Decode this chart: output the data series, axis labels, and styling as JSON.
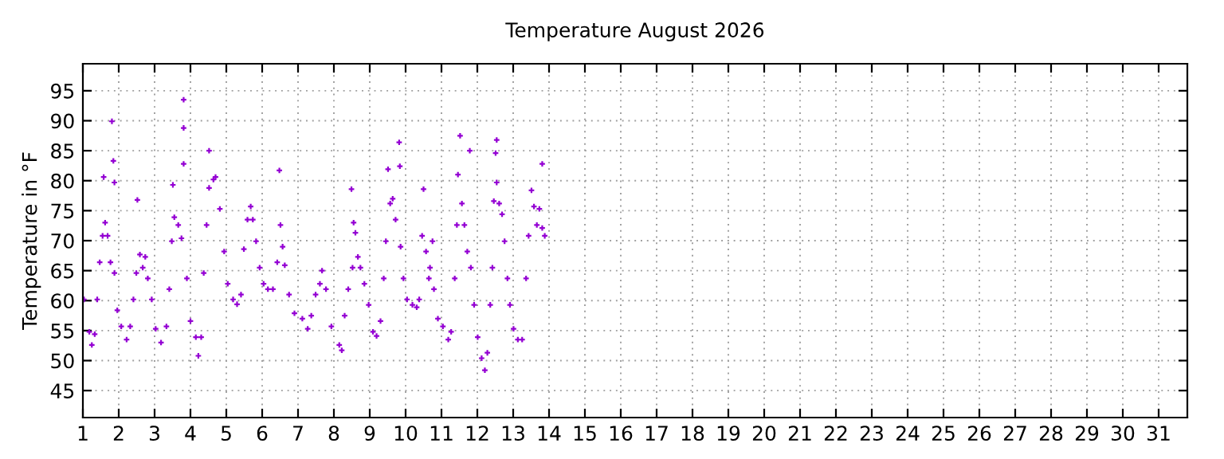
{
  "chart_data": {
    "type": "scatter",
    "title": "Temperature August 2026",
    "ylabel": "Temperature in °F",
    "xlim": [
      1,
      31.8
    ],
    "ylim": [
      40.5,
      99.5
    ],
    "xticks": [
      1,
      2,
      3,
      4,
      5,
      6,
      7,
      8,
      9,
      10,
      11,
      12,
      13,
      14,
      15,
      16,
      17,
      18,
      19,
      20,
      21,
      22,
      23,
      24,
      25,
      26,
      27,
      28,
      29,
      30,
      31
    ],
    "yticks": [
      45,
      50,
      55,
      60,
      65,
      70,
      75,
      80,
      85,
      90,
      95
    ],
    "grid": true,
    "marker": "cross",
    "legend": false,
    "series": [
      {
        "color": "#9400d3",
        "x": [
          1.03,
          1.18,
          1.25,
          1.33,
          1.4,
          1.47,
          1.55,
          1.58,
          1.62,
          1.69,
          1.77,
          1.81,
          1.85,
          1.88,
          1.88,
          1.96,
          2.07,
          2.22,
          2.32,
          2.41,
          2.49,
          2.52,
          2.59,
          2.67,
          2.74,
          2.81,
          2.92,
          3.03,
          3.18,
          3.33,
          3.41,
          3.48,
          3.51,
          3.55,
          3.66,
          3.75,
          3.81,
          3.81,
          3.81,
          3.9,
          4.0,
          4.15,
          4.22,
          4.3,
          4.37,
          4.45,
          4.52,
          4.52,
          4.64,
          4.7,
          4.82,
          4.94,
          5.04,
          5.19,
          5.3,
          5.41,
          5.49,
          5.59,
          5.68,
          5.74,
          5.83,
          5.93,
          6.04,
          6.16,
          6.3,
          6.42,
          6.48,
          6.51,
          6.57,
          6.63,
          6.75,
          6.9,
          7.12,
          7.27,
          7.37,
          7.49,
          7.61,
          7.67,
          7.78,
          7.93,
          8.15,
          8.22,
          8.3,
          8.4,
          8.49,
          8.52,
          8.55,
          8.6,
          8.67,
          8.74,
          8.85,
          8.97,
          9.09,
          9.19,
          9.3,
          9.39,
          9.45,
          9.51,
          9.57,
          9.64,
          9.72,
          9.82,
          9.84,
          9.86,
          9.94,
          10.04,
          10.19,
          10.31,
          10.38,
          10.46,
          10.5,
          10.57,
          10.65,
          10.68,
          10.75,
          10.79,
          10.9,
          11.04,
          11.19,
          11.27,
          11.37,
          11.43,
          11.46,
          11.52,
          11.57,
          11.64,
          11.72,
          11.79,
          11.82,
          11.91,
          12.01,
          12.12,
          12.21,
          12.28,
          12.36,
          12.42,
          12.46,
          12.51,
          12.54,
          12.54,
          12.61,
          12.69,
          12.76,
          12.84,
          12.91,
          13.01,
          13.13,
          13.25,
          13.36,
          13.43,
          13.51,
          13.58,
          13.66,
          13.73,
          13.81,
          13.81,
          13.88
        ],
        "values": [
          60.2,
          54.8,
          52.6,
          54.4,
          60.2,
          66.4,
          70.8,
          80.6,
          73.0,
          70.8,
          66.4,
          89.9,
          83.3,
          79.7,
          64.6,
          58.4,
          55.7,
          53.5,
          55.7,
          60.2,
          64.6,
          76.8,
          67.7,
          65.5,
          67.3,
          63.7,
          60.2,
          55.3,
          53.0,
          55.7,
          61.9,
          69.9,
          79.3,
          73.9,
          72.6,
          70.4,
          93.5,
          88.8,
          82.8,
          63.7,
          56.6,
          53.9,
          50.8,
          53.9,
          64.6,
          72.6,
          85.0,
          78.8,
          80.2,
          80.6,
          75.3,
          68.2,
          62.8,
          60.2,
          59.4,
          61.0,
          68.6,
          73.5,
          75.7,
          73.5,
          69.9,
          65.5,
          62.8,
          61.9,
          61.9,
          66.4,
          81.7,
          72.6,
          69.0,
          65.9,
          61.0,
          57.9,
          57.0,
          55.3,
          57.5,
          61.0,
          62.8,
          65.0,
          61.9,
          55.7,
          52.6,
          51.7,
          57.5,
          61.9,
          78.6,
          65.5,
          73.0,
          71.3,
          67.3,
          65.5,
          62.8,
          59.3,
          54.8,
          54.1,
          56.6,
          63.7,
          69.9,
          81.9,
          76.2,
          77.0,
          73.5,
          86.4,
          82.4,
          69.0,
          63.7,
          60.2,
          59.3,
          58.9,
          60.2,
          70.8,
          78.6,
          68.2,
          63.7,
          65.5,
          69.9,
          61.9,
          57.0,
          55.7,
          53.5,
          54.8,
          63.7,
          72.6,
          81.0,
          87.5,
          76.2,
          72.6,
          68.2,
          85.0,
          65.5,
          59.3,
          53.9,
          50.4,
          48.4,
          51.3,
          59.3,
          65.5,
          76.6,
          84.6,
          86.8,
          79.7,
          76.2,
          74.4,
          69.9,
          63.7,
          59.3,
          55.3,
          53.5,
          53.5,
          63.7,
          70.8,
          78.4,
          75.7,
          72.6,
          75.3,
          82.8,
          72.1,
          70.8
        ]
      }
    ]
  }
}
